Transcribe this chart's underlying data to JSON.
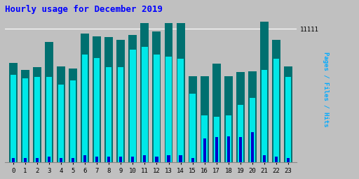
{
  "title": "Hourly usage for December 2019",
  "ylabel": "Pages / Files / Hits",
  "xlabel_ticks": [
    0,
    1,
    2,
    3,
    4,
    5,
    6,
    7,
    8,
    9,
    10,
    11,
    12,
    13,
    14,
    15,
    16,
    17,
    18,
    19,
    20,
    21,
    22,
    23
  ],
  "ylim": [
    0,
    12200
  ],
  "ytick_val": 11111,
  "ytick_label": "11111",
  "background_color": "#c0c0c0",
  "plot_bg_color": "#c0c0c0",
  "title_color": "#0000ff",
  "ylabel_color": "#00aaff",
  "bar_width": 0.7,
  "pages_color": "#007070",
  "files_color": "#00e8e8",
  "hits_color": "#0000cc",
  "pages": [
    8300,
    7700,
    7900,
    10000,
    8000,
    7800,
    10700,
    10500,
    10400,
    10200,
    10600,
    11600,
    10900,
    11600,
    11600,
    7200,
    7200,
    8200,
    7200,
    7500,
    7600,
    11700,
    10200,
    8000
  ],
  "files": [
    7300,
    7000,
    7100,
    7100,
    6500,
    6800,
    9000,
    8700,
    7900,
    7900,
    9400,
    9600,
    9000,
    8800,
    8600,
    5700,
    3900,
    3800,
    3900,
    4800,
    5400,
    7700,
    8600,
    7100
  ],
  "hits": [
    400,
    400,
    400,
    500,
    400,
    400,
    600,
    500,
    500,
    500,
    500,
    600,
    500,
    600,
    600,
    400,
    2000,
    2100,
    2200,
    2100,
    2500,
    600,
    500,
    400
  ]
}
